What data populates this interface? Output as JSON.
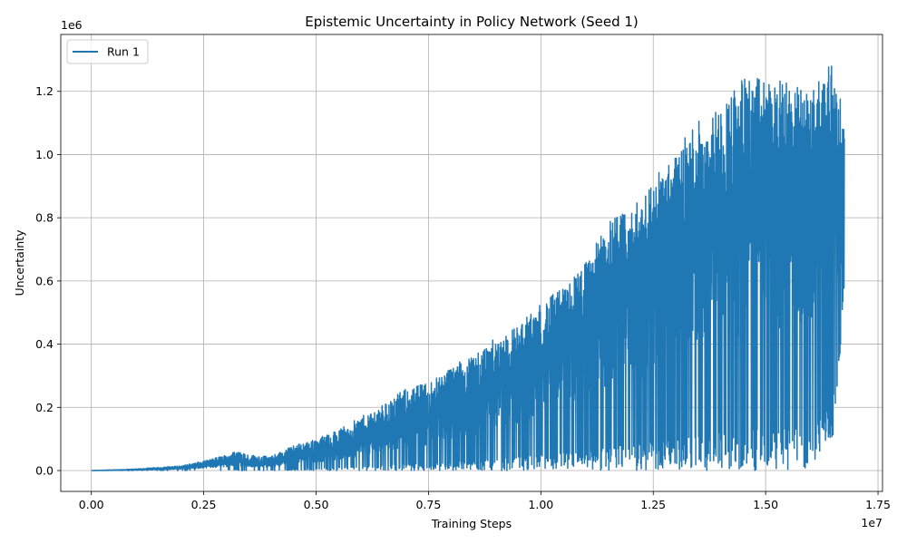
{
  "chart_data": {
    "type": "line",
    "title": "Epistemic Uncertainty in Policy Network (Seed 1)",
    "xlabel": "Training Steps",
    "ylabel": "Uncertainty",
    "x_offset_label": "1e7",
    "y_offset_label": "1e6",
    "xlim": [
      -0.068,
      1.76
    ],
    "ylim": [
      -0.066,
      1.38
    ],
    "x_ticks": [
      0.0,
      0.25,
      0.5,
      0.75,
      1.0,
      1.25,
      1.5,
      1.75
    ],
    "x_tick_labels": [
      "0.00",
      "0.25",
      "0.50",
      "0.75",
      "1.00",
      "1.25",
      "1.50",
      "1.75"
    ],
    "y_ticks": [
      0.0,
      0.2,
      0.4,
      0.6,
      0.8,
      1.0,
      1.2
    ],
    "y_tick_labels": [
      "0.0",
      "0.2",
      "0.4",
      "0.6",
      "0.8",
      "1.0",
      "1.2"
    ],
    "grid": true,
    "legend_position": "top-left",
    "series": [
      {
        "name": "Run 1",
        "color": "#1f77b4",
        "x": [
          0.0,
          0.1,
          0.2,
          0.25,
          0.3,
          0.33,
          0.35,
          0.4,
          0.45,
          0.5,
          0.55,
          0.6,
          0.65,
          0.7,
          0.75,
          0.8,
          0.85,
          0.9,
          0.95,
          1.0,
          1.05,
          1.1,
          1.15,
          1.2,
          1.25,
          1.3,
          1.35,
          1.4,
          1.45,
          1.5,
          1.55,
          1.6,
          1.65,
          1.675
        ],
        "envelope_max": [
          0.0,
          0.005,
          0.015,
          0.03,
          0.05,
          0.065,
          0.05,
          0.045,
          0.08,
          0.1,
          0.13,
          0.17,
          0.21,
          0.26,
          0.28,
          0.33,
          0.37,
          0.42,
          0.46,
          0.53,
          0.58,
          0.66,
          0.8,
          0.82,
          0.93,
          1.0,
          1.13,
          1.15,
          1.25,
          1.24,
          1.23,
          1.2,
          1.31,
          1.1
        ],
        "envelope_min": [
          0.0,
          0.0,
          0.0,
          0.0,
          0.0,
          0.0,
          0.0,
          0.0,
          0.0,
          0.0,
          0.0,
          0.0,
          0.0,
          0.0,
          0.0,
          0.0,
          0.0,
          0.0,
          0.0,
          0.0,
          0.0,
          0.0,
          0.0,
          0.0,
          0.0,
          0.0,
          0.0,
          0.0,
          0.0,
          0.0,
          0.0,
          0.0,
          0.1,
          0.54
        ],
        "envelope_mid": [
          0.0,
          0.002,
          0.008,
          0.015,
          0.025,
          0.03,
          0.02,
          0.02,
          0.04,
          0.05,
          0.07,
          0.09,
          0.12,
          0.15,
          0.16,
          0.19,
          0.22,
          0.26,
          0.3,
          0.34,
          0.38,
          0.44,
          0.52,
          0.56,
          0.62,
          0.68,
          0.74,
          0.8,
          0.84,
          0.88,
          0.88,
          0.9,
          0.95,
          0.85
        ]
      }
    ]
  }
}
